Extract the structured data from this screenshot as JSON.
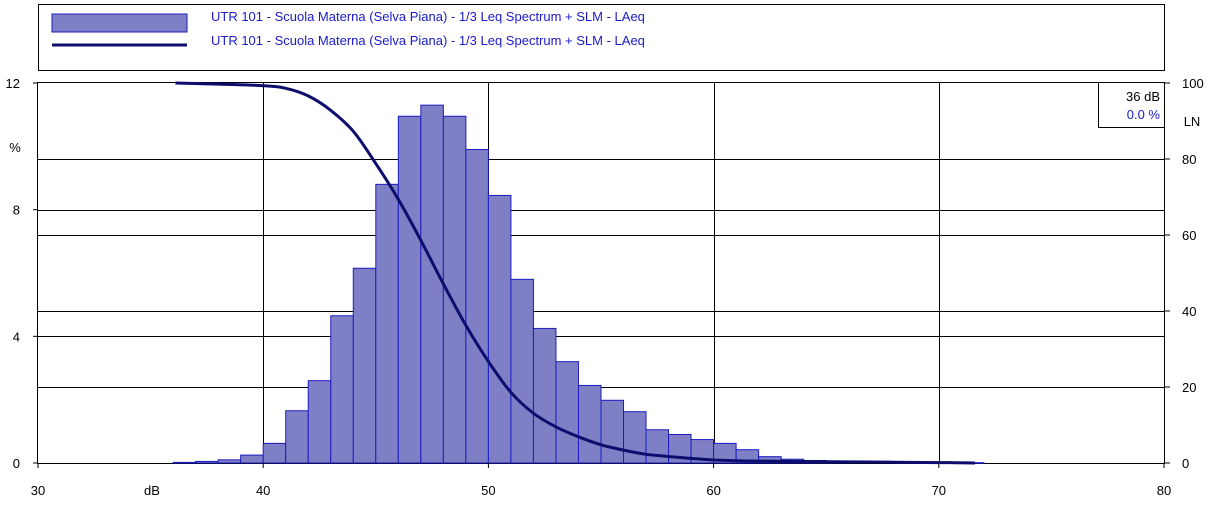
{
  "chart_data": {
    "type": "bar",
    "legend": {
      "placement": "top",
      "entries": [
        {
          "label": "UTR 101 - Scuola Materna (Selva Piana) - 1/3 Leq Spectrum + SLM - LAeq",
          "kind": "bar"
        },
        {
          "label": "UTR 101 - Scuola Materna (Selva Piana) - 1/3 Leq Spectrum + SLM - LAeq",
          "kind": "line"
        }
      ]
    },
    "x": {
      "label": "dB",
      "lim": [
        30,
        80
      ],
      "ticks": [
        "30",
        "40",
        "50",
        "60",
        "70",
        "80"
      ]
    },
    "y_left": {
      "label": "%",
      "lim": [
        0,
        12
      ],
      "ticks": [
        "0",
        "4",
        "8",
        "12"
      ]
    },
    "y_right": {
      "label": "LN",
      "lim": [
        0,
        100
      ],
      "ticks": [
        "0",
        "20",
        "40",
        "60",
        "80",
        "100"
      ]
    },
    "grid": true,
    "bar_width_db": 1,
    "bars": {
      "x_start": [
        36,
        37,
        38,
        39,
        40,
        41,
        42,
        43,
        44,
        45,
        46,
        47,
        48,
        49,
        50,
        51,
        52,
        53,
        54,
        55,
        56,
        57,
        58,
        59,
        60,
        61,
        62,
        63,
        64,
        65,
        66,
        67,
        68,
        69,
        70,
        71
      ],
      "values": [
        0.02,
        0.05,
        0.1,
        0.25,
        0.62,
        1.65,
        2.6,
        4.65,
        6.15,
        8.8,
        10.95,
        11.3,
        10.95,
        9.9,
        8.45,
        5.8,
        4.25,
        3.2,
        2.45,
        1.98,
        1.62,
        1.05,
        0.9,
        0.74,
        0.62,
        0.42,
        0.2,
        0.12,
        0.08,
        0.06,
        0.05,
        0.04,
        0.03,
        0.02,
        0.02,
        0.01
      ]
    },
    "cumulative_line": {
      "x": [
        36.1,
        38,
        40,
        41,
        42,
        43,
        44,
        45,
        46,
        47,
        48,
        49,
        50,
        51,
        52,
        53,
        54,
        55,
        56,
        57,
        58,
        59,
        60,
        61,
        62,
        64,
        66,
        68,
        70,
        71.6
      ],
      "y": [
        100,
        99.7,
        99.3,
        98.6,
        96.6,
        92.8,
        87.3,
        78.8,
        69.4,
        58.6,
        47.1,
        36.2,
        26.7,
        18.6,
        13.1,
        9.5,
        6.9,
        4.8,
        3.4,
        2.3,
        1.7,
        1.2,
        0.8,
        0.6,
        0.5,
        0.4,
        0.3,
        0.2,
        0.1,
        0
      ]
    },
    "readout": {
      "level": "36 dB",
      "percent": "0.0 %"
    },
    "colors": {
      "bar_fill": "#7f7fc6",
      "bar_stroke": "#1c1cc2",
      "line": "#0d0d6e",
      "legend_text": "#1a1acd",
      "percent_text": "#1a1acd"
    }
  }
}
